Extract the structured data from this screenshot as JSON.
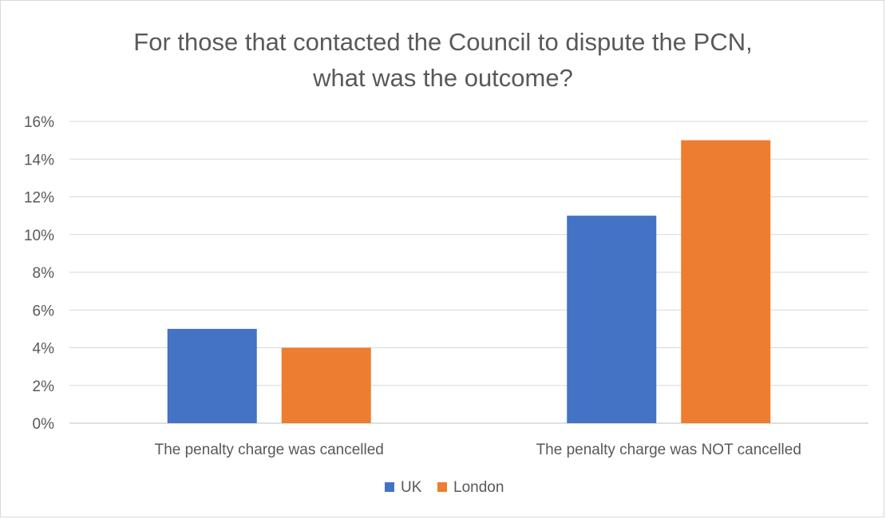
{
  "chart_data": {
    "type": "bar",
    "title": "For those that contacted the Council to dispute the PCN,\nwhat was the outcome?",
    "xlabel": "",
    "ylabel": "",
    "categories": [
      "The penalty charge was cancelled",
      "The penalty charge was NOT cancelled"
    ],
    "series": [
      {
        "name": "UK",
        "values": [
          5,
          11
        ],
        "color": "#4472c4"
      },
      {
        "name": "London",
        "values": [
          4,
          15
        ],
        "color": "#ed7d31"
      }
    ],
    "ylim": [
      0,
      16
    ],
    "yticks": [
      0,
      2,
      4,
      6,
      8,
      10,
      12,
      14,
      16
    ],
    "y_tick_format": "percent",
    "grid": true,
    "legend_position": "bottom"
  }
}
